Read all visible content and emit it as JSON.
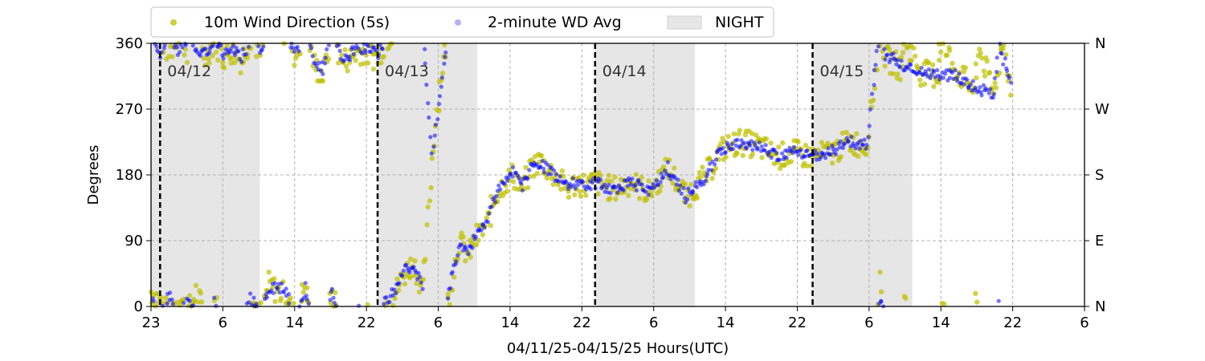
{
  "chart_data": {
    "type": "scatter",
    "xlabel": "04/11/25-04/15/25  Hours(UTC)",
    "ylabel": "Degrees",
    "ylim": [
      0,
      360
    ],
    "xlim": [
      "2025-04-11T23:00",
      "2025-04-16T06:00"
    ],
    "x_tick_labels": [
      "23",
      "6",
      "14",
      "22",
      "6",
      "14",
      "22",
      "6",
      "14",
      "22",
      "6",
      "14",
      "22",
      "6"
    ],
    "y_ticks": [
      0,
      90,
      180,
      270,
      360
    ],
    "y_tick_labels": [
      "0",
      "90",
      "180",
      "270",
      "360"
    ],
    "right_axis_labels": [
      "N",
      "E",
      "S",
      "W",
      "N"
    ],
    "grid": true,
    "legend_position": "above plot, top-left",
    "legend": [
      {
        "label": "10m Wind Direction (5s)",
        "color": "#bfbf00",
        "marker": "circle"
      },
      {
        "label": "2-minute WD Avg",
        "color": "#0000ff",
        "marker": "circle-faint"
      },
      {
        "label": "NIGHT",
        "color": "#e6e6e6",
        "marker": "shaded-rect"
      }
    ],
    "day_markers": [
      {
        "time": "2025-04-12T00:00",
        "label": "04/12"
      },
      {
        "time": "2025-04-13T00:00",
        "label": "04/13"
      },
      {
        "time": "2025-04-14T00:00",
        "label": "04/14"
      },
      {
        "time": "2025-04-15T00:00",
        "label": "04/15"
      }
    ],
    "night_periods": [
      {
        "start": "2025-04-11T23:00",
        "end": "2025-04-12T11:00"
      },
      {
        "start": "2025-04-13T00:00",
        "end": "2025-04-13T11:00"
      },
      {
        "start": "2025-04-14T00:00",
        "end": "2025-04-14T11:00"
      },
      {
        "start": "2025-04-15T00:00",
        "end": "2025-04-15T11:00"
      }
    ],
    "series": [
      {
        "name": "10m Wind Direction (5s)",
        "color": "#bfbf00",
        "points": [
          [
            "2025-04-11T23:00",
            20
          ],
          [
            "2025-04-12T00:00",
            10
          ],
          [
            "2025-04-12T01:00",
            345
          ],
          [
            "2025-04-12T02:00",
            15
          ],
          [
            "2025-04-12T03:00",
            350
          ],
          [
            "2025-04-12T04:00",
            20
          ],
          [
            "2025-04-12T05:00",
            340
          ],
          [
            "2025-04-12T06:00",
            5
          ],
          [
            "2025-04-12T07:00",
            340
          ],
          [
            "2025-04-12T08:00",
            350
          ],
          [
            "2025-04-12T09:00",
            335
          ],
          [
            "2025-04-12T10:00",
            10
          ],
          [
            "2025-04-12T11:00",
            345
          ],
          [
            "2025-04-12T12:00",
            30
          ],
          [
            "2025-04-12T13:00",
            20
          ],
          [
            "2025-04-12T14:00",
            15
          ],
          [
            "2025-04-12T15:00",
            340
          ],
          [
            "2025-04-12T16:00",
            30
          ],
          [
            "2025-04-12T17:00",
            330
          ],
          [
            "2025-04-12T18:00",
            315
          ],
          [
            "2025-04-12T19:00",
            20
          ],
          [
            "2025-04-12T20:00",
            335
          ],
          [
            "2025-04-12T21:00",
            340
          ],
          [
            "2025-04-12T22:00",
            350
          ],
          [
            "2025-04-12T23:00",
            345
          ],
          [
            "2025-04-13T00:00",
            340
          ],
          [
            "2025-04-13T01:00",
            5
          ],
          [
            "2025-04-13T02:00",
            20
          ],
          [
            "2025-04-13T03:00",
            45
          ],
          [
            "2025-04-13T04:00",
            60
          ],
          [
            "2025-04-13T05:00",
            20
          ],
          [
            "2025-04-13T06:00",
            200
          ],
          [
            "2025-04-13T07:00",
            320
          ],
          [
            "2025-04-13T08:00",
            20
          ],
          [
            "2025-04-13T09:00",
            90
          ],
          [
            "2025-04-13T10:00",
            70
          ],
          [
            "2025-04-13T11:00",
            95
          ],
          [
            "2025-04-13T12:00",
            110
          ],
          [
            "2025-04-13T13:00",
            150
          ],
          [
            "2025-04-13T14:00",
            170
          ],
          [
            "2025-04-13T15:00",
            180
          ],
          [
            "2025-04-13T16:00",
            160
          ],
          [
            "2025-04-13T17:00",
            190
          ],
          [
            "2025-04-13T18:00",
            200
          ],
          [
            "2025-04-13T19:00",
            185
          ],
          [
            "2025-04-13T20:00",
            175
          ],
          [
            "2025-04-13T21:00",
            160
          ],
          [
            "2025-04-13T22:00",
            170
          ],
          [
            "2025-04-13T23:00",
            165
          ],
          [
            "2025-04-14T00:00",
            170
          ],
          [
            "2025-04-14T02:00",
            160
          ],
          [
            "2025-04-14T04:00",
            170
          ],
          [
            "2025-04-14T06:00",
            155
          ],
          [
            "2025-04-14T08:00",
            190
          ],
          [
            "2025-04-14T10:00",
            150
          ],
          [
            "2025-04-14T12:00",
            175
          ],
          [
            "2025-04-14T14:00",
            215
          ],
          [
            "2025-04-14T16:00",
            225
          ],
          [
            "2025-04-14T18:00",
            220
          ],
          [
            "2025-04-14T20:00",
            205
          ],
          [
            "2025-04-14T22:00",
            210
          ],
          [
            "2025-04-15T00:00",
            205
          ],
          [
            "2025-04-15T02:00",
            210
          ],
          [
            "2025-04-15T04:00",
            225
          ],
          [
            "2025-04-15T06:00",
            220
          ],
          [
            "2025-04-15T07:00",
            320
          ],
          [
            "2025-04-15T08:00",
            340
          ],
          [
            "2025-04-15T10:00",
            325
          ],
          [
            "2025-04-15T12:00",
            320
          ],
          [
            "2025-04-15T14:00",
            315
          ],
          [
            "2025-04-15T16:00",
            320
          ],
          [
            "2025-04-15T18:00",
            295
          ],
          [
            "2025-04-15T20:00",
            290
          ],
          [
            "2025-04-15T22:00",
            290
          ],
          [
            "2025-04-15T07:30",
            30
          ],
          [
            "2025-04-15T10:00",
            10
          ],
          [
            "2025-04-15T14:00",
            5
          ],
          [
            "2025-04-15T18:00",
            8
          ],
          [
            "2025-04-15T21:00",
            5
          ]
        ]
      },
      {
        "name": "2-minute WD Avg",
        "color": "#0000ff",
        "points": [
          [
            "2025-04-11T23:00",
            10
          ],
          [
            "2025-04-12T00:00",
            345
          ],
          [
            "2025-04-12T01:00",
            15
          ],
          [
            "2025-04-12T02:00",
            350
          ],
          [
            "2025-04-12T03:00",
            5
          ],
          [
            "2025-04-12T04:00",
            355
          ],
          [
            "2025-04-12T05:00",
            345
          ],
          [
            "2025-04-12T06:00",
            8
          ],
          [
            "2025-04-12T07:00",
            345
          ],
          [
            "2025-04-12T08:00",
            355
          ],
          [
            "2025-04-12T09:00",
            340
          ],
          [
            "2025-04-12T10:00",
            10
          ],
          [
            "2025-04-12T11:00",
            350
          ],
          [
            "2025-04-12T12:00",
            20
          ],
          [
            "2025-04-12T13:00",
            30
          ],
          [
            "2025-04-12T14:00",
            15
          ],
          [
            "2025-04-12T15:00",
            345
          ],
          [
            "2025-04-12T16:00",
            25
          ],
          [
            "2025-04-12T17:00",
            335
          ],
          [
            "2025-04-12T18:00",
            325
          ],
          [
            "2025-04-12T19:00",
            20
          ],
          [
            "2025-04-12T20:00",
            340
          ],
          [
            "2025-04-12T21:00",
            345
          ],
          [
            "2025-04-12T22:00",
            355
          ],
          [
            "2025-04-12T23:00",
            350
          ],
          [
            "2025-04-13T00:00",
            345
          ],
          [
            "2025-04-13T01:00",
            10
          ],
          [
            "2025-04-13T02:00",
            25
          ],
          [
            "2025-04-13T03:00",
            50
          ],
          [
            "2025-04-13T04:00",
            55
          ],
          [
            "2025-04-13T05:00",
            25
          ],
          [
            "2025-04-13T06:00",
            210
          ],
          [
            "2025-04-13T07:00",
            300
          ],
          [
            "2025-04-13T08:00",
            30
          ],
          [
            "2025-04-13T09:00",
            85
          ],
          [
            "2025-04-13T10:00",
            75
          ],
          [
            "2025-04-13T11:00",
            100
          ],
          [
            "2025-04-13T12:00",
            115
          ],
          [
            "2025-04-13T13:00",
            150
          ],
          [
            "2025-04-13T14:00",
            170
          ],
          [
            "2025-04-13T15:00",
            185
          ],
          [
            "2025-04-13T16:00",
            165
          ],
          [
            "2025-04-13T17:00",
            195
          ],
          [
            "2025-04-13T18:00",
            195
          ],
          [
            "2025-04-13T19:00",
            185
          ],
          [
            "2025-04-13T20:00",
            175
          ],
          [
            "2025-04-13T21:00",
            165
          ],
          [
            "2025-04-13T22:00",
            170
          ],
          [
            "2025-04-13T23:00",
            165
          ],
          [
            "2025-04-14T00:00",
            168
          ],
          [
            "2025-04-14T02:00",
            162
          ],
          [
            "2025-04-14T04:00",
            170
          ],
          [
            "2025-04-14T06:00",
            158
          ],
          [
            "2025-04-14T08:00",
            190
          ],
          [
            "2025-04-14T10:00",
            150
          ],
          [
            "2025-04-14T12:00",
            175
          ],
          [
            "2025-04-14T14:00",
            215
          ],
          [
            "2025-04-14T16:00",
            222
          ],
          [
            "2025-04-14T18:00",
            218
          ],
          [
            "2025-04-14T20:00",
            208
          ],
          [
            "2025-04-14T22:00",
            210
          ],
          [
            "2025-04-15T00:00",
            205
          ],
          [
            "2025-04-15T02:00",
            212
          ],
          [
            "2025-04-15T04:00",
            225
          ],
          [
            "2025-04-15T06:00",
            222
          ],
          [
            "2025-04-15T07:00",
            335
          ],
          [
            "2025-04-15T08:00",
            345
          ],
          [
            "2025-04-15T10:00",
            330
          ],
          [
            "2025-04-15T12:00",
            322
          ],
          [
            "2025-04-15T14:00",
            318
          ],
          [
            "2025-04-15T16:00",
            315
          ],
          [
            "2025-04-15T18:00",
            300
          ],
          [
            "2025-04-15T20:00",
            290
          ],
          [
            "2025-04-15T22:00",
            295
          ],
          [
            "2025-04-15T07:30",
            8
          ],
          [
            "2025-04-15T20:30",
            3
          ]
        ]
      }
    ]
  }
}
